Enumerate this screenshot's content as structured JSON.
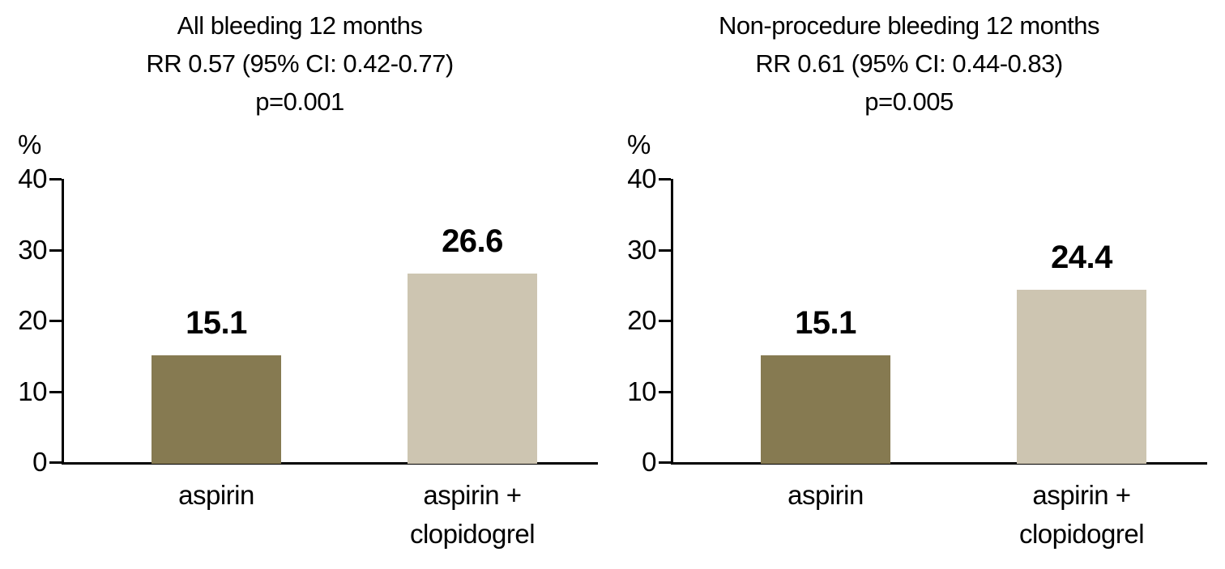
{
  "figure": {
    "background_color": "#ffffff",
    "text_color": "#000000",
    "axis_color": "#000000"
  },
  "chart_data": [
    {
      "type": "bar",
      "title": "All bleeding 12 months",
      "title_lines": [
        "All bleeding 12 months",
        "RR 0.57 (95% CI: 0.42-0.77)",
        "p=0.001"
      ],
      "rr_text": "RR 0.57 (95% CI: 0.42-0.77)",
      "p_value_text": "p=0.001",
      "ylabel": "%",
      "ylim": [
        0,
        40
      ],
      "yticks": [
        0,
        10,
        20,
        30,
        40
      ],
      "grid": false,
      "legend_position": "none",
      "categories": [
        "aspirin",
        "aspirin + clopidogrel"
      ],
      "category_label_lines": [
        [
          "aspirin"
        ],
        [
          "aspirin +",
          "clopidogrel"
        ]
      ],
      "values": [
        15.1,
        26.6
      ],
      "value_labels": [
        "15.1",
        "26.6"
      ],
      "bar_colors": [
        "#867a51",
        "#cdc5b1"
      ]
    },
    {
      "type": "bar",
      "title": "Non-procedure bleeding 12 months",
      "title_lines": [
        "Non-procedure bleeding 12 months",
        "RR 0.61 (95% CI: 0.44-0.83)",
        "p=0.005"
      ],
      "rr_text": "RR 0.61 (95% CI: 0.44-0.83)",
      "p_value_text": "p=0.005",
      "ylabel": "%",
      "ylim": [
        0,
        40
      ],
      "yticks": [
        0,
        10,
        20,
        30,
        40
      ],
      "grid": false,
      "legend_position": "none",
      "categories": [
        "aspirin",
        "aspirin + clopidogrel"
      ],
      "category_label_lines": [
        [
          "aspirin"
        ],
        [
          "aspirin +",
          "clopidogrel"
        ]
      ],
      "values": [
        15.1,
        24.4
      ],
      "value_labels": [
        "15.1",
        "24.4"
      ],
      "bar_colors": [
        "#867a51",
        "#cdc5b1"
      ]
    }
  ]
}
